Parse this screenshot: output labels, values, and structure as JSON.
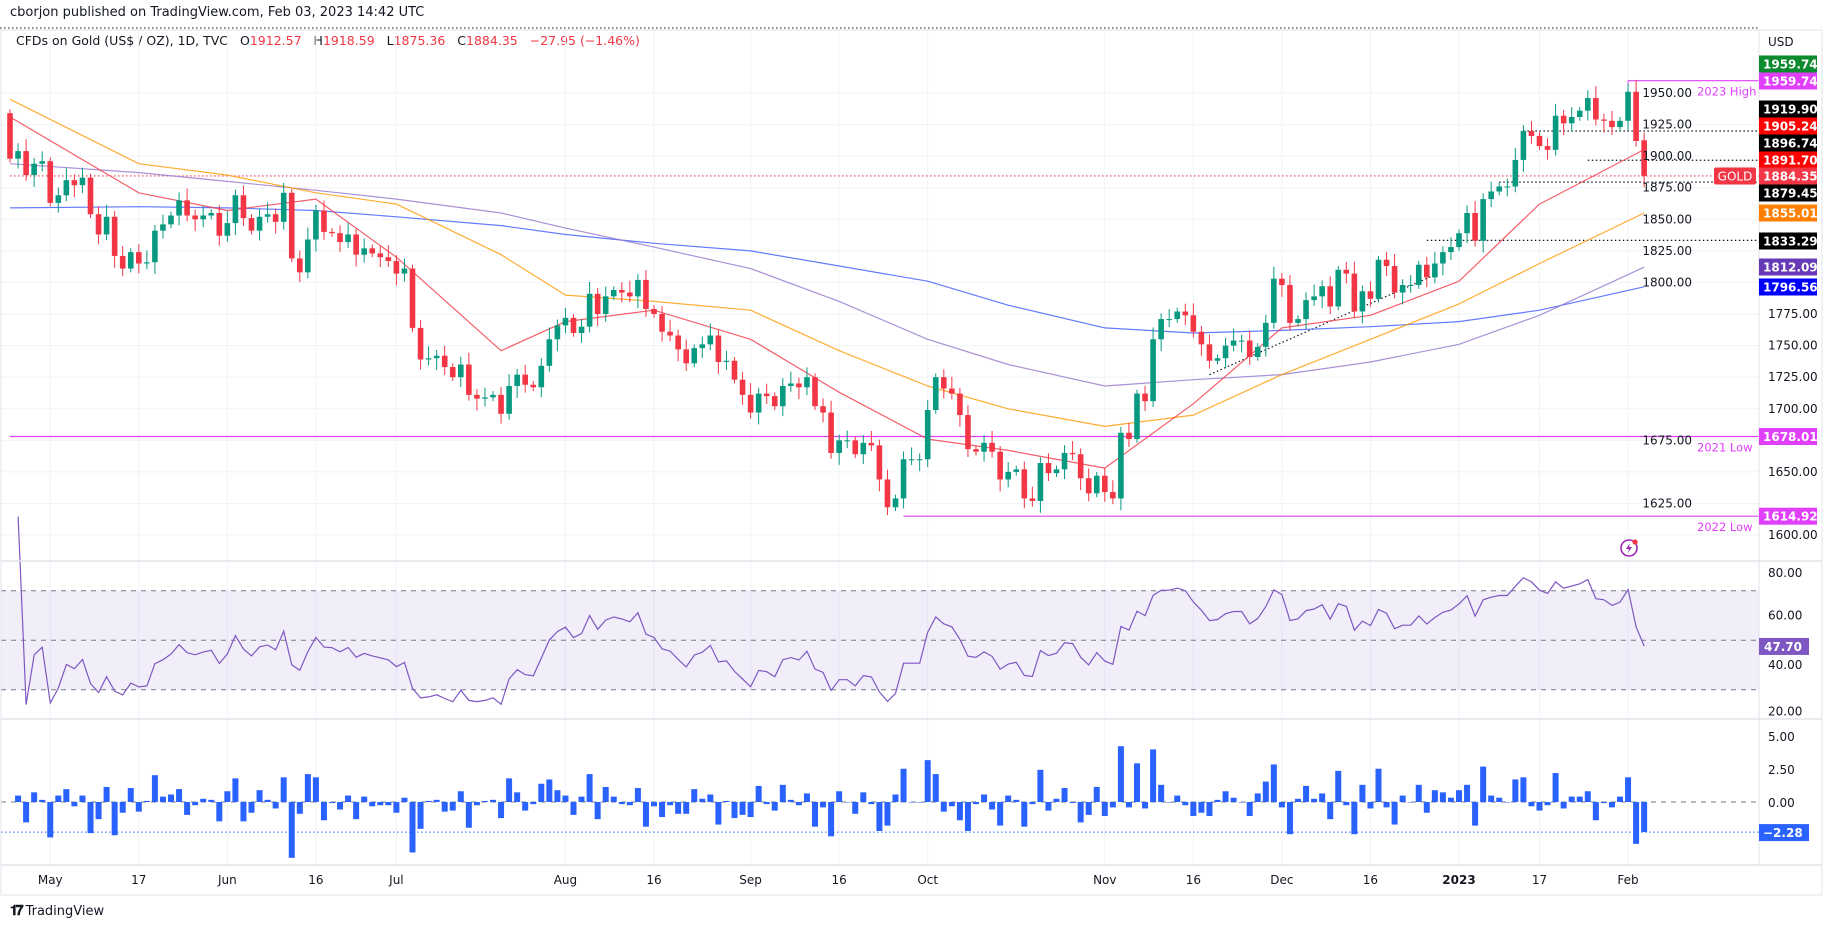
{
  "header": {
    "published": "cborjon published on TradingView.com, Feb 03, 2023 14:42 UTC"
  },
  "legend": {
    "symbol": "CFDs on Gold (US$ / OZ), 1D, TVC",
    "o_label": "O",
    "o": "1912.57",
    "h_label": "H",
    "h": "1918.59",
    "l_label": "L",
    "l": "1875.36",
    "c_label": "C",
    "c": "1884.35",
    "change": "−27.95 (−1.46%)"
  },
  "footer": {
    "brand": "TradingView"
  },
  "colors": {
    "up": "#089981",
    "down": "#F23645",
    "sma20": "#F23645",
    "sma50": "#FF9800",
    "sma100": "#9575CD",
    "sma200": "#3D5AFE",
    "rsi": "#7E57C2",
    "histogram": "#2962FF",
    "level": "#E040FB"
  },
  "chart_data": {
    "type": "candlestick",
    "currency": "USD",
    "x_ticks": [
      {
        "label": "May",
        "date": "May 2"
      },
      {
        "label": "17",
        "date": "May 17"
      },
      {
        "label": "Jun",
        "date": "Jun 1"
      },
      {
        "label": "16",
        "date": "Jun 16"
      },
      {
        "label": "Jul",
        "date": "Jul 1"
      },
      {
        "label": "Aug",
        "date": "Aug 1"
      },
      {
        "label": "16",
        "date": "Aug 16"
      },
      {
        "label": "Sep",
        "date": "Sep 1"
      },
      {
        "label": "16",
        "date": "Sep 16"
      },
      {
        "label": "Oct",
        "date": "Oct 3"
      },
      {
        "label": "Nov",
        "date": "Nov 1"
      },
      {
        "label": "16",
        "date": "Nov 16"
      },
      {
        "label": "Dec",
        "date": "Dec 1"
      },
      {
        "label": "16",
        "date": "Dec 16"
      },
      {
        "label": "2023",
        "date": "Jan 3"
      },
      {
        "label": "17",
        "date": "Jan 17"
      },
      {
        "label": "Feb",
        "date": "Feb 1"
      }
    ],
    "y_ticks": [
      "1950.00",
      "1925.00",
      "1900.00",
      "1875.00",
      "1850.00",
      "1825.00",
      "1800.00",
      "1775.00",
      "1750.00",
      "1725.00",
      "1700.00",
      "1675.00",
      "1650.00",
      "1625.00",
      "1600.00"
    ],
    "first_open": 1934,
    "closes": [
      1898,
      1904,
      1885,
      1894,
      1896,
      1863,
      1869,
      1881,
      1877,
      1883,
      1854,
      1838,
      1852,
      1821,
      1811,
      1824,
      1815,
      1816,
      1841,
      1846,
      1853,
      1865,
      1853,
      1850,
      1853,
      1855,
      1837,
      1847,
      1869,
      1851,
      1841,
      1852,
      1854,
      1848,
      1871,
      1819,
      1808,
      1834,
      1857,
      1840,
      1839,
      1832,
      1838,
      1822,
      1827,
      1823,
      1820,
      1817,
      1807,
      1811,
      1764,
      1739,
      1740,
      1742,
      1733,
      1725,
      1735,
      1711,
      1708,
      1709,
      1711,
      1696,
      1718,
      1727,
      1719,
      1717,
      1734,
      1755,
      1766,
      1772,
      1760,
      1765,
      1791,
      1775,
      1789,
      1794,
      1792,
      1789,
      1802,
      1779,
      1775,
      1761,
      1758,
      1747,
      1736,
      1748,
      1751,
      1758,
      1737,
      1738,
      1723,
      1711,
      1697,
      1712,
      1710,
      1702,
      1718,
      1720,
      1717,
      1725,
      1702,
      1697,
      1665,
      1675,
      1675,
      1664,
      1673,
      1671,
      1644,
      1622,
      1629,
      1660,
      1660,
      1660,
      1699,
      1725,
      1716,
      1712,
      1695,
      1668,
      1666,
      1673,
      1666,
      1644,
      1650,
      1652,
      1629,
      1627,
      1657,
      1649,
      1652,
      1665,
      1664,
      1645,
      1633,
      1647,
      1634,
      1629,
      1681,
      1676,
      1712,
      1706,
      1755,
      1771,
      1771,
      1777,
      1774,
      1761,
      1751,
      1738,
      1740,
      1750,
      1754,
      1754,
      1741,
      1749,
      1768,
      1803,
      1798,
      1768,
      1771,
      1786,
      1789,
      1797,
      1781,
      1810,
      1807,
      1777,
      1793,
      1787,
      1818,
      1813,
      1792,
      1798,
      1798,
      1814,
      1804,
      1815,
      1824,
      1828,
      1839,
      1855,
      1833,
      1866,
      1872,
      1876,
      1876,
      1897,
      1920,
      1916,
      1908,
      1905,
      1932,
      1926,
      1931,
      1936,
      1946,
      1929,
      1928,
      1923,
      1928,
      1951,
      1912,
      1884.35
    ],
    "last_bar": {
      "open": 1912.57,
      "high": 1918.59,
      "low": 1875.36,
      "close": 1884.35
    },
    "moving_averages": {
      "sample_dates": [
        "Apr 25",
        "May 17",
        "Jun 1",
        "Jun 16",
        "Jul 1",
        "Jul 20",
        "Aug 1",
        "Aug 16",
        "Sep 1",
        "Sep 16",
        "Oct 3",
        "Oct 17",
        "Nov 1",
        "Nov 16",
        "Dec 1",
        "Dec 16",
        "Jan 3",
        "Jan 17",
        "Feb 3"
      ],
      "sma20": [
        1931,
        1871,
        1857,
        1866,
        1820,
        1746,
        1769,
        1778,
        1755,
        1713,
        1676,
        1667,
        1653,
        1704,
        1764,
        1774,
        1801,
        1862,
        1905.24
      ],
      "sma50": [
        1945,
        1894,
        1885,
        1871,
        1862,
        1822,
        1790,
        1785,
        1778,
        1746,
        1718,
        1700,
        1686,
        1695,
        1727,
        1755,
        1783,
        1815,
        1855.01
      ],
      "sma100": [
        1894,
        1887,
        1880,
        1873,
        1866,
        1855,
        1843,
        1828,
        1811,
        1785,
        1755,
        1735,
        1718,
        1723,
        1727,
        1737,
        1751,
        1774,
        1812.09
      ],
      "sma200": [
        1859,
        1860,
        1859,
        1857,
        1852,
        1845,
        1838,
        1831,
        1825,
        1813,
        1801,
        1782,
        1764,
        1760,
        1762,
        1765,
        1769,
        1778,
        1796.56
      ]
    },
    "levels": [
      {
        "label": "2023 High",
        "price": 1959.74,
        "from": "Feb 1"
      },
      {
        "label": "2021 Low",
        "price": 1678.01,
        "from": "Apr 25"
      },
      {
        "label": "2022 Low",
        "price": 1614.92,
        "from": "Sep 28"
      }
    ],
    "dotted_lines": [
      {
        "price": 1919.9,
        "from": "Jan 13"
      },
      {
        "price": 1896.74,
        "from": "Jan 26"
      },
      {
        "price": 1879.45,
        "from": "Jan 10"
      },
      {
        "price": 1833.29,
        "from": "Dec 28"
      },
      {
        "price": 1884.35,
        "from": "Apr 25",
        "color": "red"
      }
    ],
    "trendline": {
      "from": {
        "date": "Nov 21",
        "price": 1727
      },
      "to": {
        "date": "Dec 29",
        "price": 1806
      }
    },
    "price_labels": [
      {
        "text": "1959.74",
        "bg": "#0B8A2E"
      },
      {
        "text": "1959.74",
        "bg": "#E040FB"
      },
      {
        "text": "1919.90",
        "bg": "#000000"
      },
      {
        "text": "1905.24",
        "bg": "#FF0000"
      },
      {
        "text": "1896.74",
        "bg": "#000000"
      },
      {
        "text": "1891.70",
        "bg": "#FF0000"
      },
      {
        "text": "1884.35",
        "bg": "#F23645",
        "tag": "GOLD"
      },
      {
        "text": "1879.45",
        "bg": "#000000"
      },
      {
        "text": "1855.01",
        "bg": "#FF7F00"
      },
      {
        "text": "1833.29",
        "bg": "#000000"
      },
      {
        "text": "1812.09",
        "bg": "#673AB7"
      },
      {
        "text": "1796.56",
        "bg": "#0000FF"
      }
    ],
    "rsi": {
      "y_ticks": [
        "80.00",
        "60.00",
        "40.00",
        "20.00"
      ],
      "upper": 70,
      "middle": 50,
      "lower": 30,
      "last": "47.70"
    },
    "histogram": {
      "y_ticks": [
        "5.00",
        "2.50",
        "0.00"
      ],
      "last": "−2.28",
      "last_value": -2.28
    }
  }
}
